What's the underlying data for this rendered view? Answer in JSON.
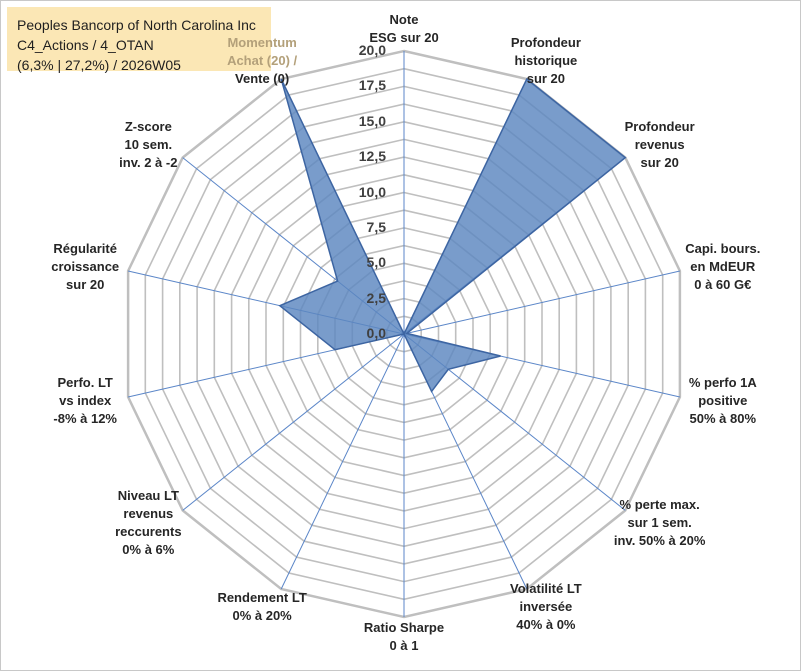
{
  "title": {
    "line1": "Peoples Bancorp of North Carolina Inc",
    "line2": "C4_Actions / 4_OTAN",
    "line3": "(6,3% | 27,2%) / 2026W05"
  },
  "chart_data": {
    "type": "radar",
    "title": "Peoples Bancorp of North Carolina Inc",
    "rmin": 0,
    "rmax": 20,
    "ticks": [
      "0,0",
      "2,5",
      "5,0",
      "7,5",
      "10,0",
      "12,5",
      "15,0",
      "17,5",
      "20,0"
    ],
    "tick_values": [
      0,
      2.5,
      5,
      7.5,
      10,
      12.5,
      15,
      17.5,
      20
    ],
    "grid_step": 1.25,
    "colors": {
      "fill": "#5b86bf",
      "stroke": "#3d65a2",
      "grid": "#bfbfbf",
      "axis": "#5b86c8",
      "title_bg": "#fbe7b5"
    },
    "axes": [
      {
        "label": [
          "Note",
          "ESG sur 20"
        ],
        "value": 0
      },
      {
        "label": [
          "Profondeur",
          "historique",
          "sur 20"
        ],
        "value": 20
      },
      {
        "label": [
          "Profondeur",
          "revenus",
          "sur 20"
        ],
        "value": 20
      },
      {
        "label": [
          "Capi. bours.",
          "en MdEUR",
          "0 à 60 G€"
        ],
        "value": 0.2
      },
      {
        "label": [
          "% perfo 1A",
          "positive",
          "50% à 80%"
        ],
        "value": 7
      },
      {
        "label": [
          "% perte max.",
          "sur 1 sem.",
          "inv. 50% à 20%"
        ],
        "value": 4
      },
      {
        "label": [
          "Volatilité LT",
          "inversée",
          "40% à 0%"
        ],
        "value": 4.5
      },
      {
        "label": [
          "Ratio Sharpe",
          "0 à 1"
        ],
        "value": 0
      },
      {
        "label": [
          "Rendement LT",
          "0% à 20%"
        ],
        "value": 0
      },
      {
        "label": [
          "Niveau LT",
          "revenus",
          "reccurents",
          "0% à 6%"
        ],
        "value": 0
      },
      {
        "label": [
          "Perfo. LT",
          "vs index",
          "-8% à 12%"
        ],
        "value": 5
      },
      {
        "label": [
          "Régularité",
          "croissance",
          "sur 20"
        ],
        "value": 9
      },
      {
        "label": [
          "Z-score",
          "10 sem.",
          "inv. 2 à -2"
        ],
        "value": 6
      },
      {
        "label": [
          "Momentum",
          "Achat (20) /",
          "Vente (0)"
        ],
        "value": 20
      }
    ]
  }
}
